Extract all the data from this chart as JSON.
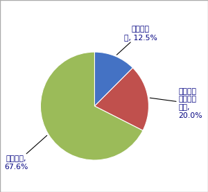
{
  "slices": [
    {
      "label": "知ってい\nる, 12.5%",
      "value": 12.5,
      "color": "#4472C4"
    },
    {
      "label": "なんとな\nく知って\nいる,\n20.0%",
      "value": 20.0,
      "color": "#C0504D"
    },
    {
      "label": "知らない,\n67.6%",
      "value": 67.6,
      "color": "#9BBB59"
    }
  ],
  "background_color": "#FFFFFF",
  "startangle": 90,
  "figsize": [
    3.0,
    2.77
  ],
  "dpi": 100,
  "label_color": "#000080"
}
